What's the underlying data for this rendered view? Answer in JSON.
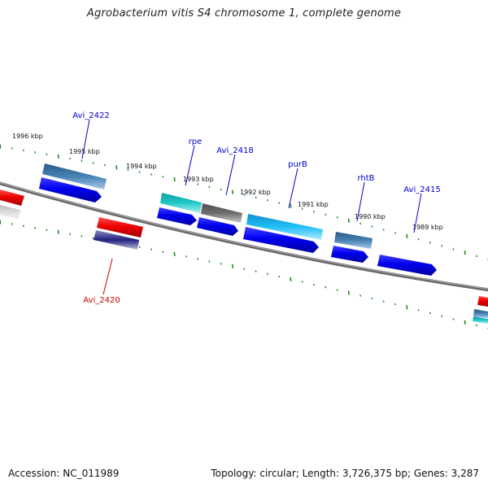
{
  "title": "Agrobacterium vitis S4 chromosome 1, complete genome",
  "footer": {
    "accession": "Accession: NC_011989",
    "topology": "Topology: circular; Length: 3,726,375 bp; Genes: 3,287"
  },
  "scale_labels": [
    "1996 kbp",
    "1995 kbp",
    "1994 kbp",
    "1993 kbp",
    "1992 kbp",
    "1991 kbp",
    "1990 kbp",
    "1989 kbp"
  ],
  "gene_labels": [
    {
      "name": "Avi_2422",
      "color": "#0000cc"
    },
    {
      "name": "rpe",
      "color": "#0000cc"
    },
    {
      "name": "Avi_2418",
      "color": "#0000cc"
    },
    {
      "name": "purB",
      "color": "#0000cc"
    },
    {
      "name": "rhtB",
      "color": "#0000cc"
    },
    {
      "name": "Avi_2415",
      "color": "#0000cc"
    },
    {
      "name": "Avi_2420",
      "color": "#cc0000"
    }
  ],
  "colors": {
    "backbone": "#808080",
    "tick": "#228b22",
    "forward_cds": "#0000ee",
    "reverse_cds": "#ee0000",
    "steelblue_feature": "#4682b4",
    "cyan_feature": "#20c0c0",
    "skyblue_feature": "#20b8f0",
    "gray_feature": "#707070",
    "navy_feature": "#202080"
  }
}
